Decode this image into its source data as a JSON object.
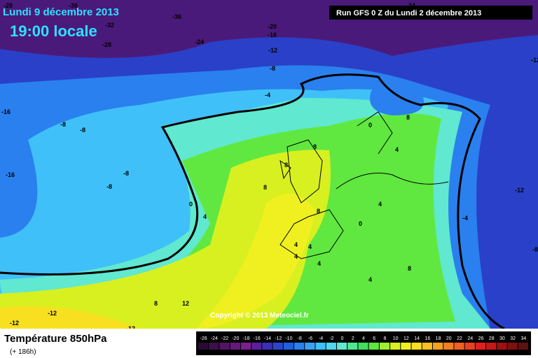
{
  "header": {
    "date": "Lundi 9 décembre 2013",
    "time": "19:00 locale",
    "run": "Run GFS 0 Z du Lundi 2 décembre 2013"
  },
  "copyright": "Copyright © 2013 Meteociel.fr",
  "footer": {
    "title": "Température 850hPa",
    "lead": "(+ 186h)"
  },
  "legend": {
    "labels": [
      -26,
      -24,
      -22,
      -20,
      -18,
      -16,
      -14,
      -12,
      -10,
      -8,
      -6,
      -4,
      -2,
      0,
      2,
      4,
      6,
      8,
      10,
      12,
      14,
      16,
      18,
      20,
      22,
      24,
      26,
      28,
      30,
      32,
      34
    ],
    "colors": [
      "#2a0a33",
      "#3d0f4a",
      "#521463",
      "#66197a",
      "#7a1f8f",
      "#5a1f9e",
      "#3a2fb5",
      "#2a45cc",
      "#2060e0",
      "#2a80ee",
      "#3aa0f5",
      "#40c0f8",
      "#50d8f0",
      "#60e8d0",
      "#50e890",
      "#40e060",
      "#60e840",
      "#a0f030",
      "#d8f020",
      "#f0f020",
      "#f8e020",
      "#f8c020",
      "#f8a020",
      "#f08020",
      "#f06020",
      "#e84020",
      "#e02020",
      "#c81818",
      "#a01010",
      "#801010",
      "#601010"
    ]
  },
  "map": {
    "contour_labels": [
      -36,
      -36,
      -32,
      -28,
      -24,
      -28,
      -20,
      -16,
      -12,
      -8,
      -4,
      -24,
      -12,
      -16,
      -8,
      -8,
      -8,
      -8,
      -16,
      -12,
      -4,
      -8,
      0,
      8,
      4,
      8,
      8,
      8,
      0,
      4,
      8,
      4,
      0,
      4,
      4,
      4,
      4,
      8,
      4,
      8,
      12,
      -12,
      -12,
      -12
    ]
  }
}
